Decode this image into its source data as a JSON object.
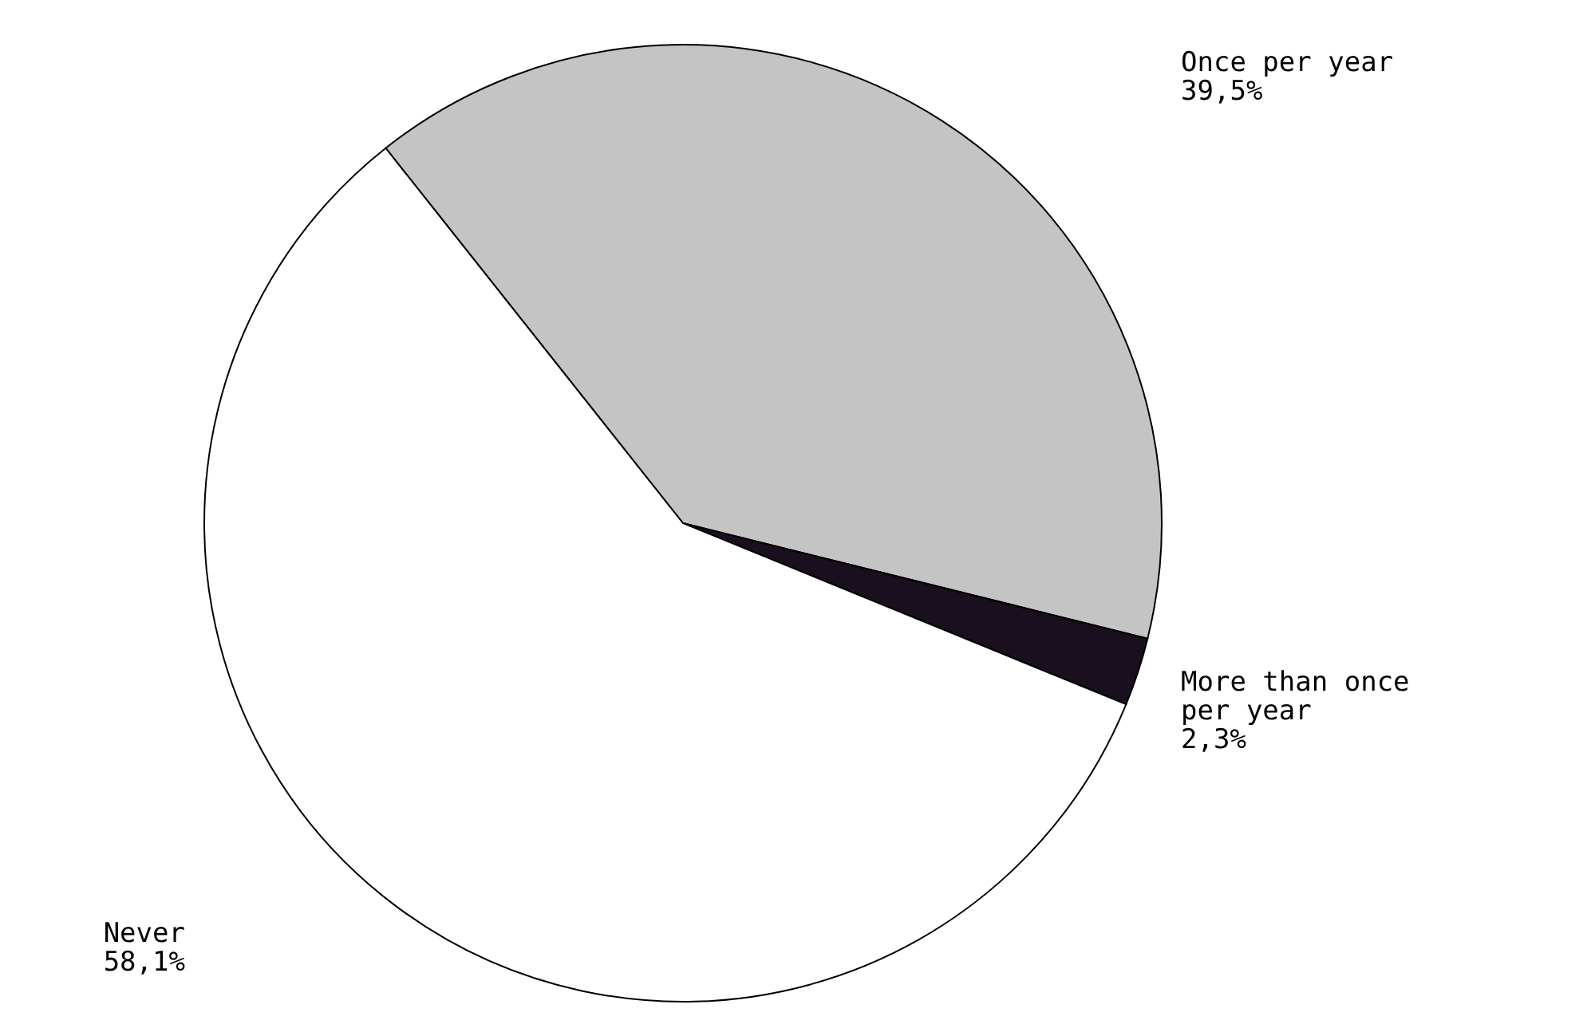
{
  "chart_data": {
    "type": "pie",
    "categories": [
      "Once per year",
      "More than once per year",
      "Never"
    ],
    "values": [
      39.5,
      2.3,
      58.1
    ],
    "value_labels": [
      "39,5%",
      "2,3%",
      "58,1%"
    ],
    "colors": [
      "#c4c4c4",
      "#1a0f1e",
      "#ffffff"
    ]
  }
}
